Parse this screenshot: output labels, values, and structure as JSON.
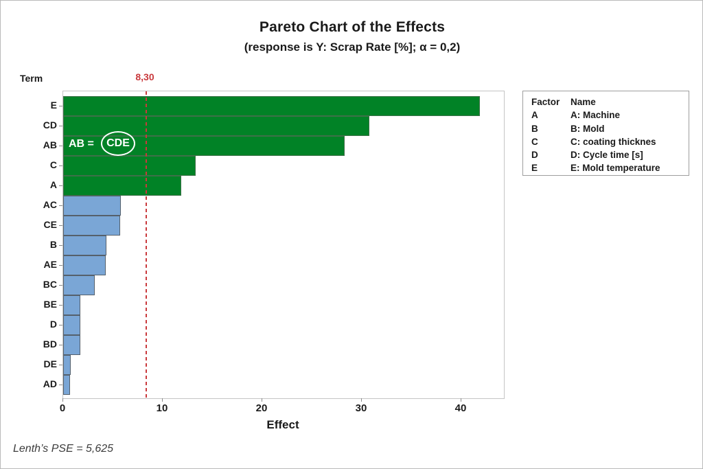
{
  "title": "Pareto Chart of the Effects",
  "subtitle": "(response is Y: Scrap Rate [%]; α = 0,2)",
  "y_axis_title": "Term",
  "x_axis_title": "Effect",
  "footnote": "Lenth’s PSE = 5,625",
  "annotation": {
    "prefix": "AB =",
    "circled": "CDE"
  },
  "reference_line": {
    "value": 8.3,
    "label": "8,30"
  },
  "legend": {
    "header": {
      "factor": "Factor",
      "name": "Name"
    },
    "rows": [
      {
        "factor": "A",
        "name": "A: Machine"
      },
      {
        "factor": "B",
        "name": "B: Mold"
      },
      {
        "factor": "C",
        "name": "C: coating thicknes"
      },
      {
        "factor": "D",
        "name": "D: Cycle time [s]"
      },
      {
        "factor": "E",
        "name": "E: Mold temperature"
      }
    ]
  },
  "chart_data": {
    "type": "bar",
    "orientation": "horizontal",
    "title": "Pareto Chart of the Effects",
    "xlabel": "Effect",
    "ylabel": "Term",
    "categories": [
      "E",
      "CD",
      "AB",
      "C",
      "A",
      "AC",
      "CE",
      "B",
      "AE",
      "BC",
      "BE",
      "D",
      "BD",
      "DE",
      "AD"
    ],
    "values": [
      41.9,
      30.8,
      28.3,
      13.3,
      11.9,
      5.8,
      5.7,
      4.35,
      4.3,
      3.2,
      1.75,
      1.72,
      1.7,
      0.75,
      0.72
    ],
    "significant_count": 5,
    "significance_threshold": 8.3,
    "lenths_pse": 5.625,
    "alpha": "0,2",
    "x_ticks": [
      0,
      10,
      20,
      30,
      40
    ],
    "xlim": [
      0,
      44.3
    ],
    "grid": false,
    "legend_position": "top-right",
    "colors": {
      "significant_fill": "#018226",
      "significant_border": "#3e7049",
      "not_significant_fill": "#7aa6d6",
      "not_significant_border": "#55606b",
      "reference_red": "#c9393c"
    }
  }
}
